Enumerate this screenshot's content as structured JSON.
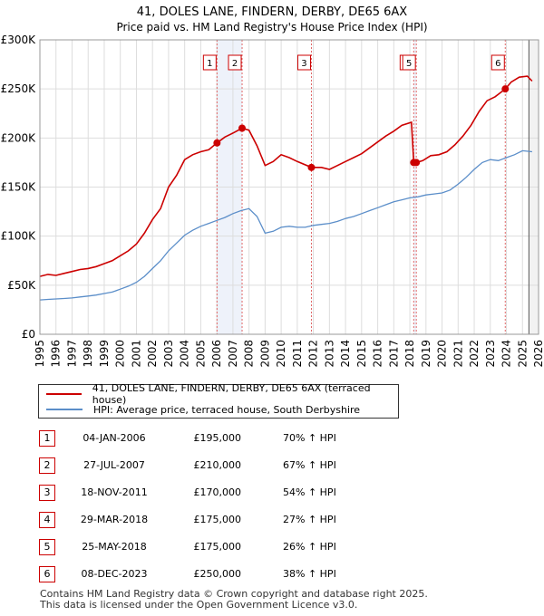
{
  "colors": {
    "property": "#cc0000",
    "hpi": "#5b8ec9",
    "grid": "#dddddd",
    "shade": "#eef2fa",
    "marker_line": "#e06666"
  },
  "legend": {
    "property_label": "41, DOLES LANE, FINDERN, DERBY, DE65 6AX (terraced house)",
    "hpi_label": "HPI: Average price, terraced house, South Derbyshire"
  },
  "transactions": [
    {
      "num": "1",
      "date": "04-JAN-2006",
      "price": "£195,000",
      "pct": "70% ↑ HPI",
      "t": 2006.01,
      "v": 195000
    },
    {
      "num": "2",
      "date": "27-JUL-2007",
      "price": "£210,000",
      "pct": "67% ↑ HPI",
      "t": 2007.57,
      "v": 210000
    },
    {
      "num": "3",
      "date": "18-NOV-2011",
      "price": "£170,000",
      "pct": "54% ↑ HPI",
      "t": 2011.88,
      "v": 170000
    },
    {
      "num": "4",
      "date": "29-MAR-2018",
      "price": "£175,000",
      "pct": "27% ↑ HPI",
      "t": 2018.24,
      "v": 175000
    },
    {
      "num": "5",
      "date": "25-MAY-2018",
      "price": "£175,000",
      "pct": "26% ↑ HPI",
      "t": 2018.4,
      "v": 175000
    },
    {
      "num": "6",
      "date": "08-DEC-2023",
      "price": "£250,000",
      "pct": "38% ↑ HPI",
      "t": 2023.93,
      "v": 250000
    }
  ],
  "footer": {
    "line1": "Contains HM Land Registry data © Crown copyright and database right 2025.",
    "line2": "This data is licensed under the Open Government Licence v3.0."
  },
  "chart_data": {
    "type": "line",
    "title": "41, DOLES LANE, FINDERN, DERBY, DE65 6AX",
    "subtitle": "Price paid vs. HM Land Registry's House Price Index (HPI)",
    "xlabel": "",
    "ylabel": "",
    "xlim": [
      1995,
      2026
    ],
    "ylim": [
      0,
      300000
    ],
    "y_ticks": [
      0,
      50000,
      100000,
      150000,
      200000,
      250000,
      300000
    ],
    "y_tick_labels": [
      "£0",
      "£50K",
      "£100K",
      "£150K",
      "£200K",
      "£250K",
      "£300K"
    ],
    "x_ticks": [
      1995,
      1996,
      1997,
      1998,
      1999,
      2000,
      2001,
      2002,
      2003,
      2004,
      2005,
      2006,
      2007,
      2008,
      2009,
      2010,
      2011,
      2012,
      2013,
      2014,
      2015,
      2016,
      2017,
      2018,
      2019,
      2020,
      2021,
      2022,
      2023,
      2024,
      2025,
      2026
    ],
    "x_tick_labels": [
      "1995",
      "1996",
      "1997",
      "1998",
      "1999",
      "2000",
      "2001",
      "2002",
      "2003",
      "2004",
      "2005",
      "2006",
      "2007",
      "2008",
      "2009",
      "2010",
      "2011",
      "2012",
      "2013",
      "2014",
      "2015",
      "2016",
      "2017",
      "2018",
      "2019",
      "2020",
      "2021",
      "2022",
      "2023",
      "2024",
      "2025",
      "2026"
    ],
    "grid": true,
    "forecast_start": 2025.4,
    "series": [
      {
        "name": "41, DOLES LANE, FINDERN, DERBY, DE65 6AX (terraced house)",
        "x": [
          1995,
          1995.5,
          1996,
          1996.5,
          1997,
          1997.5,
          1998,
          1998.5,
          1999,
          1999.5,
          2000,
          2000.5,
          2001,
          2001.5,
          2002,
          2002.5,
          2003,
          2003.5,
          2004,
          2004.5,
          2005,
          2005.5,
          2006.01,
          2006.5,
          2007,
          2007.57,
          2008,
          2008.5,
          2009,
          2009.5,
          2010,
          2010.5,
          2011,
          2011.88,
          2012.5,
          2013,
          2013.5,
          2014,
          2014.5,
          2015,
          2015.5,
          2016,
          2016.5,
          2017,
          2017.5,
          2018.1,
          2018.24,
          2018.4,
          2018.8,
          2019.3,
          2019.8,
          2020.3,
          2020.8,
          2021.3,
          2021.8,
          2022.3,
          2022.8,
          2023.3,
          2023.93,
          2024.3,
          2024.8,
          2025.3,
          2025.6
        ],
        "values": [
          59000,
          61000,
          60000,
          62000,
          64000,
          66000,
          67000,
          69000,
          72000,
          75000,
          80000,
          85000,
          92000,
          103000,
          117000,
          128000,
          150000,
          162000,
          178000,
          183000,
          186000,
          188000,
          195000,
          201000,
          205000,
          210000,
          208000,
          192000,
          172000,
          176000,
          183000,
          180000,
          176000,
          170000,
          170000,
          168000,
          172000,
          176000,
          180000,
          184000,
          190000,
          196000,
          202000,
          207000,
          213000,
          216000,
          175000,
          175000,
          177000,
          182000,
          183000,
          186000,
          193000,
          202000,
          213000,
          227000,
          238000,
          242000,
          250000,
          257000,
          262000,
          263000,
          258000
        ]
      },
      {
        "name": "HPI: Average price, terraced house, South Derbyshire",
        "x": [
          1995,
          1995.5,
          1996,
          1996.5,
          1997,
          1997.5,
          1998,
          1998.5,
          1999,
          1999.5,
          2000,
          2000.5,
          2001,
          2001.5,
          2002,
          2002.5,
          2003,
          2003.5,
          2004,
          2004.5,
          2005,
          2005.5,
          2006,
          2006.5,
          2007,
          2007.5,
          2008,
          2008.5,
          2009,
          2009.5,
          2010,
          2010.5,
          2011,
          2011.5,
          2012,
          2012.5,
          2013,
          2013.5,
          2014,
          2014.5,
          2015,
          2015.5,
          2016,
          2016.5,
          2017,
          2017.5,
          2018,
          2018.5,
          2019,
          2019.5,
          2020,
          2020.5,
          2021,
          2021.5,
          2022,
          2022.5,
          2023,
          2023.5,
          2024,
          2024.5,
          2025,
          2025.6
        ],
        "values": [
          35000,
          35500,
          36000,
          36500,
          37000,
          38000,
          39000,
          40000,
          41500,
          43000,
          46000,
          49000,
          53000,
          59000,
          67000,
          75000,
          85000,
          93000,
          101000,
          106000,
          110000,
          113000,
          116000,
          119000,
          123000,
          126000,
          128000,
          120000,
          103000,
          105000,
          109000,
          110000,
          109000,
          109000,
          111000,
          112000,
          113000,
          115000,
          118000,
          120000,
          123000,
          126000,
          129000,
          132000,
          135000,
          137000,
          139000,
          140000,
          142000,
          143000,
          144000,
          147000,
          153000,
          160000,
          168000,
          175000,
          178000,
          177000,
          180000,
          183000,
          187000,
          186000
        ]
      }
    ]
  }
}
